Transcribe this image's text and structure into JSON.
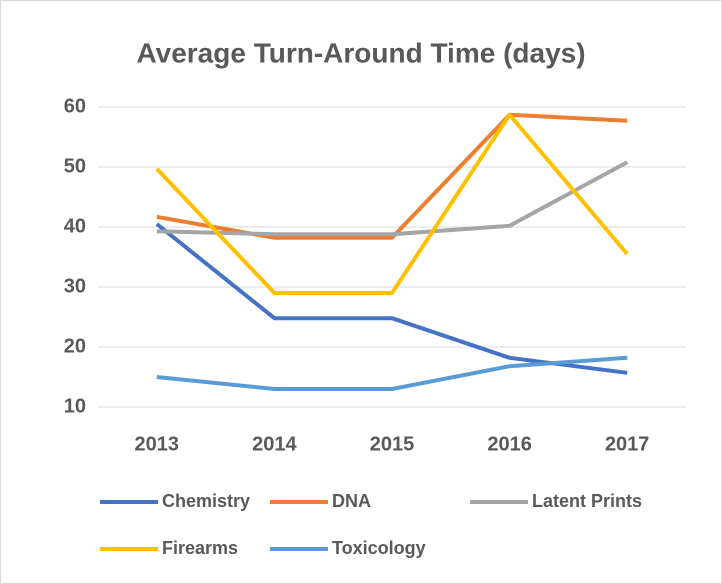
{
  "chart_data": {
    "type": "line",
    "title": "Average Turn-Around Time (days)",
    "categories": [
      "2013",
      "2014",
      "2015",
      "2016",
      "2017"
    ],
    "series": [
      {
        "name": "Chemistry",
        "color": "#4472c4",
        "values": [
          40.5,
          24.8,
          24.8,
          18.2,
          15.7
        ]
      },
      {
        "name": "DNA",
        "color": "#ed7d31",
        "values": [
          41.7,
          38.2,
          38.2,
          58.7,
          57.7
        ]
      },
      {
        "name": "Latent Prints",
        "color": "#a5a5a5",
        "values": [
          39.3,
          38.8,
          38.8,
          40.2,
          50.8
        ]
      },
      {
        "name": "Firearms",
        "color": "#ffc000",
        "values": [
          49.7,
          29,
          29,
          58.7,
          35.5
        ]
      },
      {
        "name": "Toxicology",
        "color": "#5b9bd5",
        "values": [
          15,
          13,
          13,
          16.8,
          18.2
        ]
      }
    ],
    "ylim": [
      10,
      60
    ],
    "yticks": [
      10,
      20,
      30,
      40,
      50,
      60
    ],
    "grid": true,
    "legend": "bottom"
  }
}
